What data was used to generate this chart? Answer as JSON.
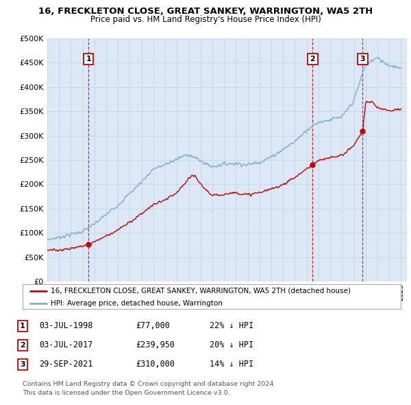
{
  "title": "16, FRECKLETON CLOSE, GREAT SANKEY, WARRINGTON, WA5 2TH",
  "subtitle": "Price paid vs. HM Land Registry's House Price Index (HPI)",
  "xlim_start": 1995.0,
  "xlim_end": 2025.5,
  "ylim": [
    0,
    500000
  ],
  "yticks": [
    0,
    50000,
    100000,
    150000,
    200000,
    250000,
    300000,
    350000,
    400000,
    450000,
    500000
  ],
  "sale_dates": [
    1998.5,
    2017.5,
    2021.75
  ],
  "sale_prices": [
    77000,
    239950,
    310000
  ],
  "sale_labels": [
    "1",
    "2",
    "3"
  ],
  "legend_red": "16, FRECKLETON CLOSE, GREAT SANKEY, WARRINGTON, WA5 2TH (detached house)",
  "legend_blue": "HPI: Average price, detached house, Warrington",
  "table_rows": [
    [
      "1",
      "03-JUL-1998",
      "£77,000",
      "22% ↓ HPI"
    ],
    [
      "2",
      "03-JUL-2017",
      "£239,950",
      "20% ↓ HPI"
    ],
    [
      "3",
      "29-SEP-2021",
      "£310,000",
      "14% ↓ HPI"
    ]
  ],
  "footnote1": "Contains HM Land Registry data © Crown copyright and database right 2024.",
  "footnote2": "This data is licensed under the Open Government Licence v3.0.",
  "red_color": "#cc0000",
  "blue_color": "#7aaed6",
  "grid_color": "#c8d8e8",
  "bg_color": "#ffffff",
  "chart_bg": "#dce8f5",
  "hpi_key_years": [
    1995,
    1996,
    1997,
    1998,
    1999,
    2000,
    2001,
    2002,
    2003,
    2004,
    2005,
    2006,
    2007,
    2008,
    2009,
    2010,
    2011,
    2012,
    2013,
    2014,
    2015,
    2016,
    2017,
    2018,
    2019,
    2020,
    2021,
    2022,
    2023,
    2024,
    2025
  ],
  "hpi_key_vals": [
    86000,
    91000,
    97000,
    103000,
    118000,
    138000,
    158000,
    181000,
    205000,
    232000,
    240000,
    252000,
    262000,
    248000,
    236000,
    242000,
    243000,
    240000,
    246000,
    256000,
    272000,
    288000,
    312000,
    328000,
    333000,
    338000,
    372000,
    448000,
    460000,
    445000,
    440000
  ],
  "red_key_years": [
    1995,
    1996,
    1997,
    1998,
    1998.5,
    1999,
    2000,
    2001,
    2002,
    2003,
    2004,
    2005,
    2006,
    2007,
    2007.5,
    2008,
    2009,
    2010,
    2011,
    2012,
    2013,
    2014,
    2015,
    2016,
    2017,
    2017.5,
    2018,
    2019,
    2020,
    2021,
    2021.75,
    2022,
    2022.5,
    2023,
    2024,
    2025
  ],
  "red_key_vals": [
    64000,
    65000,
    68000,
    73000,
    77000,
    82000,
    94000,
    106000,
    122000,
    140000,
    158000,
    168000,
    182000,
    212000,
    218000,
    200000,
    176000,
    180000,
    183000,
    178000,
    183000,
    190000,
    200000,
    214000,
    232000,
    239950,
    248000,
    255000,
    260000,
    280000,
    310000,
    368000,
    370000,
    358000,
    352000,
    355000
  ]
}
